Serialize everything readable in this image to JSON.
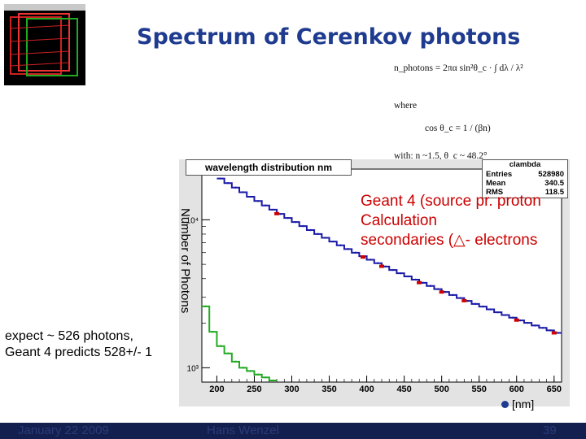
{
  "slide": {
    "title": "Spectrum of Cerenkov photons",
    "footer_date": "January 22 2009",
    "footer_author": "Hans Wenzel",
    "footer_page": "39"
  },
  "formula": {
    "line1": "n_photons = 2πα sin²θ_c · ∫ dλ / λ²",
    "where": "where",
    "line2": "cos θ_c = 1 / (βn)",
    "line3": "with: n ~1.5, θ_c ~ 48.2°"
  },
  "stats_box": {
    "title": "clambda",
    "entries_label": "Entries",
    "entries_value": "528980",
    "mean_label": "Mean",
    "mean_value": "340.5",
    "rms_label": "RMS",
    "rms_value": "118.5"
  },
  "annotations": {
    "legend_line1": "Geant 4 (source pr. proton",
    "legend_line2": "Calculation",
    "legend_line3": "secondaries (△- electrons",
    "expect_line1": "expect ~ 526 photons,",
    "expect_line2": "Geant 4 predicts 528+/- 1",
    "x_unit": "[nm]"
  },
  "colors": {
    "title": "#1f3b8f",
    "geant4": "#1a1aa8",
    "calculation": "#cc0000",
    "secondaries": "#22aa22",
    "plot_bg": "#ffffff",
    "frame_bg": "#e3e3e3",
    "footer": "#13204f"
  },
  "chart_data": {
    "type": "line",
    "title": "wavelength distribution nm",
    "xlabel": "",
    "ylabel": "Number of Photons",
    "xlim": [
      180,
      660
    ],
    "ylim": [
      800,
      22000
    ],
    "yscale": "log",
    "grid": false,
    "x_ticks": [
      200,
      250,
      300,
      350,
      400,
      450,
      500,
      550,
      600,
      650
    ],
    "y_ticks": [
      {
        "value": 1000,
        "label": "10³"
      },
      {
        "value": 10000,
        "label": "10⁴"
      }
    ],
    "series": [
      {
        "name": "Geant 4 (source pr. proton",
        "style": "step",
        "x": [
          200,
          210,
          220,
          230,
          240,
          250,
          260,
          270,
          280,
          290,
          300,
          310,
          320,
          330,
          340,
          350,
          360,
          370,
          380,
          390,
          400,
          410,
          420,
          430,
          440,
          450,
          460,
          470,
          480,
          490,
          500,
          510,
          520,
          530,
          540,
          550,
          560,
          570,
          580,
          590,
          600,
          610,
          620,
          630,
          640,
          650
        ],
        "values": [
          19000,
          17700,
          16500,
          15350,
          14300,
          13380,
          12500,
          11700,
          10950,
          10280,
          9650,
          9060,
          8520,
          8010,
          7550,
          7120,
          6720,
          6340,
          5990,
          5670,
          5370,
          5090,
          4830,
          4580,
          4350,
          4140,
          3940,
          3750,
          3570,
          3400,
          3250,
          3100,
          2960,
          2830,
          2700,
          2590,
          2480,
          2370,
          2270,
          2180,
          2090,
          2010,
          1930,
          1860,
          1790,
          1720
        ]
      },
      {
        "name": "Calculation",
        "style": "markers",
        "x": [
          280,
          395,
          420,
          470,
          500,
          530,
          600,
          650
        ],
        "values": [
          11000,
          5600,
          4850,
          3760,
          3250,
          2840,
          2100,
          1720
        ]
      },
      {
        "name": "secondaries (△- electrons",
        "style": "step",
        "x": [
          180,
          190,
          200,
          210,
          220,
          230,
          240,
          250,
          260,
          270
        ],
        "values": [
          2600,
          1750,
          1400,
          1250,
          1100,
          1000,
          950,
          900,
          860,
          820
        ]
      }
    ]
  }
}
